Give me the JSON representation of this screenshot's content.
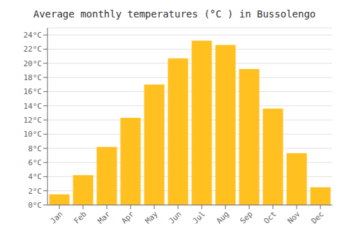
{
  "chart_data": {
    "type": "bar",
    "title": "Average monthly temperatures (°C ) in Bussolengo",
    "categories": [
      "Jan",
      "Feb",
      "Mar",
      "Apr",
      "May",
      "Jun",
      "Jul",
      "Aug",
      "Sep",
      "Oct",
      "Nov",
      "Dec"
    ],
    "values": [
      1.5,
      4.2,
      8.2,
      12.3,
      17.0,
      20.7,
      23.2,
      22.6,
      19.2,
      13.6,
      7.3,
      2.5
    ],
    "color": "#FFC020",
    "ylim": [
      0,
      25
    ],
    "yticks": [
      {
        "value": 0,
        "label": "0°C"
      },
      {
        "value": 2,
        "label": "2°C"
      },
      {
        "value": 4,
        "label": "4°C"
      },
      {
        "value": 6,
        "label": "6°C"
      },
      {
        "value": 8,
        "label": "8°C"
      },
      {
        "value": 10,
        "label": "10°C"
      },
      {
        "value": 12,
        "label": "12°C"
      },
      {
        "value": 14,
        "label": "14°C"
      },
      {
        "value": 16,
        "label": "16°C"
      },
      {
        "value": 18,
        "label": "18°C"
      },
      {
        "value": 20,
        "label": "20°C"
      },
      {
        "value": 22,
        "label": "22°C"
      },
      {
        "value": 24,
        "label": "24°C"
      }
    ],
    "grid": true
  }
}
